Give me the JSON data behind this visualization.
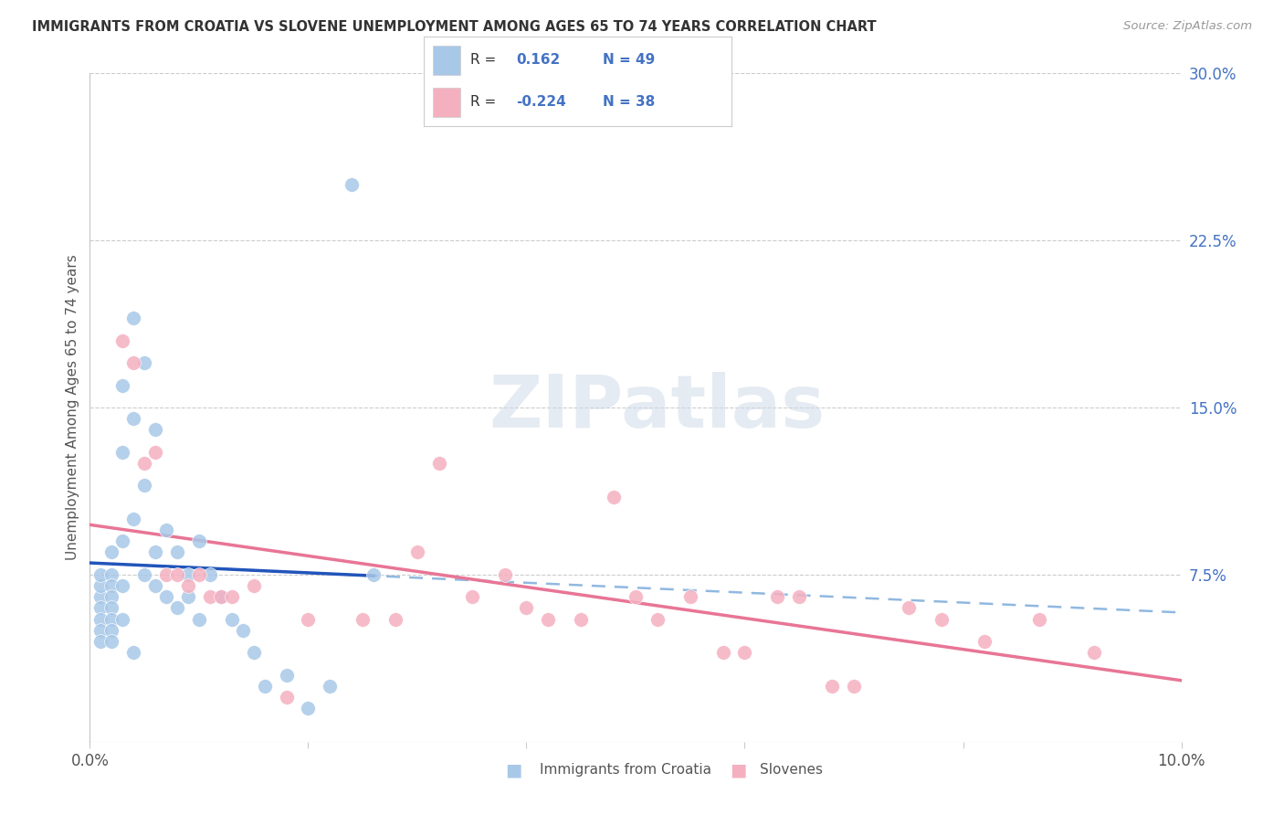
{
  "title": "IMMIGRANTS FROM CROATIA VS SLOVENE UNEMPLOYMENT AMONG AGES 65 TO 74 YEARS CORRELATION CHART",
  "source": "Source: ZipAtlas.com",
  "ylabel": "Unemployment Among Ages 65 to 74 years",
  "xlim": [
    0.0,
    0.1
  ],
  "ylim": [
    0.0,
    0.3
  ],
  "xticks": [
    0.0,
    0.02,
    0.04,
    0.06,
    0.08,
    0.1
  ],
  "yticks_right": [
    0.075,
    0.15,
    0.225,
    0.3
  ],
  "yticklabels_right": [
    "7.5%",
    "15.0%",
    "22.5%",
    "30.0%"
  ],
  "legend_label1": "Immigrants from Croatia",
  "legend_label2": "Slovenes",
  "watermark": "ZIPatlas",
  "croatia_color": "#a8c8e8",
  "slovene_color": "#f5b0c0",
  "trendline_croatia_solid_color": "#2255bb",
  "trendline_croatia_dashed_color": "#90b8e0",
  "trendline_slovene_color": "#e87595",
  "croatia_x": [
    0.001,
    0.001,
    0.001,
    0.001,
    0.001,
    0.001,
    0.001,
    0.002,
    0.002,
    0.002,
    0.002,
    0.002,
    0.002,
    0.002,
    0.002,
    0.003,
    0.003,
    0.003,
    0.003,
    0.003,
    0.004,
    0.004,
    0.004,
    0.004,
    0.005,
    0.005,
    0.005,
    0.006,
    0.006,
    0.006,
    0.007,
    0.007,
    0.008,
    0.008,
    0.009,
    0.009,
    0.01,
    0.01,
    0.011,
    0.012,
    0.013,
    0.014,
    0.015,
    0.016,
    0.018,
    0.02,
    0.022,
    0.024,
    0.026
  ],
  "croatia_y": [
    0.065,
    0.07,
    0.075,
    0.06,
    0.055,
    0.05,
    0.045,
    0.085,
    0.075,
    0.07,
    0.065,
    0.06,
    0.055,
    0.05,
    0.045,
    0.16,
    0.13,
    0.09,
    0.07,
    0.055,
    0.19,
    0.145,
    0.1,
    0.04,
    0.17,
    0.115,
    0.075,
    0.14,
    0.085,
    0.07,
    0.095,
    0.065,
    0.085,
    0.06,
    0.075,
    0.065,
    0.09,
    0.055,
    0.075,
    0.065,
    0.055,
    0.05,
    0.04,
    0.025,
    0.03,
    0.015,
    0.025,
    0.25,
    0.075
  ],
  "slovene_x": [
    0.003,
    0.004,
    0.005,
    0.006,
    0.007,
    0.008,
    0.009,
    0.01,
    0.011,
    0.012,
    0.013,
    0.015,
    0.018,
    0.02,
    0.025,
    0.028,
    0.03,
    0.032,
    0.035,
    0.038,
    0.04,
    0.042,
    0.045,
    0.048,
    0.05,
    0.052,
    0.055,
    0.058,
    0.06,
    0.063,
    0.065,
    0.068,
    0.07,
    0.075,
    0.078,
    0.082,
    0.087,
    0.092
  ],
  "slovene_y": [
    0.18,
    0.17,
    0.125,
    0.13,
    0.075,
    0.075,
    0.07,
    0.075,
    0.065,
    0.065,
    0.065,
    0.07,
    0.02,
    0.055,
    0.055,
    0.055,
    0.085,
    0.125,
    0.065,
    0.075,
    0.06,
    0.055,
    0.055,
    0.11,
    0.065,
    0.055,
    0.065,
    0.04,
    0.04,
    0.065,
    0.065,
    0.025,
    0.025,
    0.06,
    0.055,
    0.045,
    0.055,
    0.04
  ],
  "trend_croatia_x0": 0.0,
  "trend_croatia_x_solid_end": 0.026,
  "trend_croatia_x_dashed_end": 0.1,
  "trend_slovene_x0": 0.0,
  "trend_slovene_x1": 0.1
}
